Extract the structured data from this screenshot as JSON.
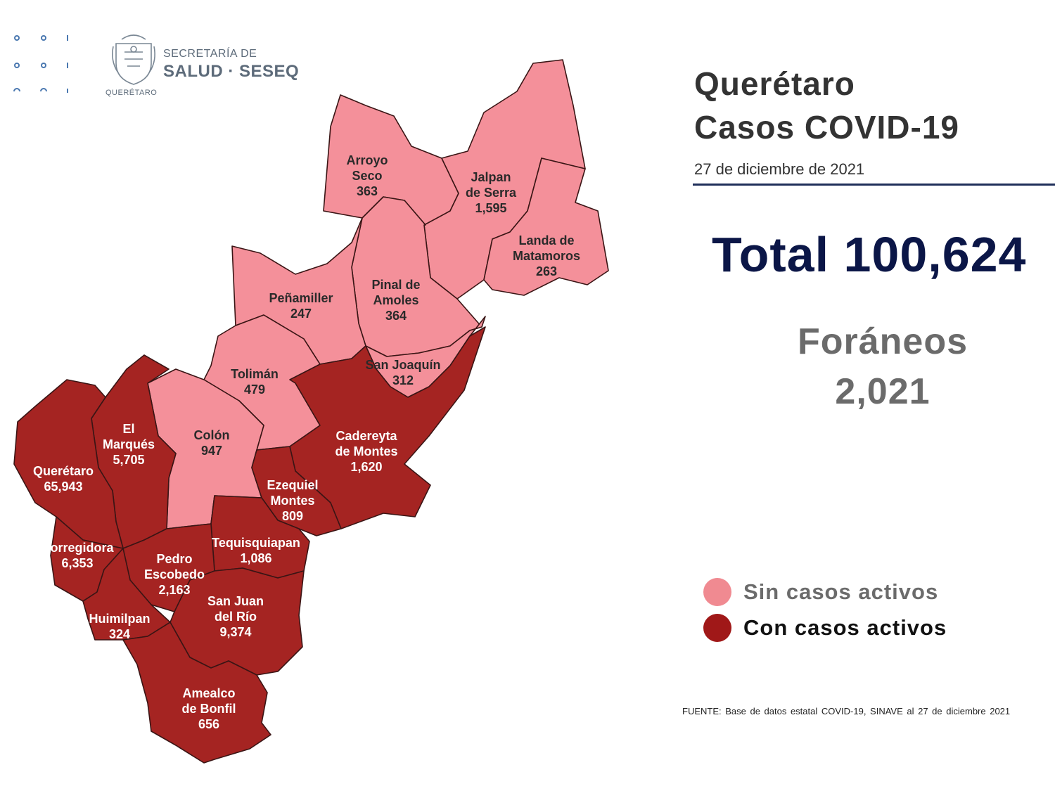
{
  "logo": {
    "line1": "SECRETARÍA DE",
    "line2": "SALUD · SESEQ",
    "caption": "QUERÉTARO"
  },
  "title": {
    "line1": "Querétaro",
    "line2": "Casos COVID-19"
  },
  "date": "27 de diciembre de 2021",
  "total": "Total 100,624",
  "foraneos": {
    "label": "Foráneos",
    "value": "2,021"
  },
  "legend": [
    {
      "label": "Sin casos activos",
      "color": "#f08a91",
      "text_color": "#6b6b6b"
    },
    {
      "label": "Con casos activos",
      "color": "#a01818",
      "text_color": "#111111"
    }
  ],
  "colors": {
    "sin_casos": "#f4909a",
    "con_casos": "#a52422",
    "border": "#222222",
    "title_navy": "#0b1647"
  },
  "source": "FUENTE: Base de datos estatal COVID-19, SINAVE al 27 de diciembre 2021",
  "municipalities": [
    {
      "id": "arroyo-seco",
      "lines": [
        "Arroyo",
        "Seco",
        "363"
      ],
      "status": "sin"
    },
    {
      "id": "jalpan-de-serra",
      "lines": [
        "Jalpan",
        "de Serra",
        "1,595"
      ],
      "status": "sin"
    },
    {
      "id": "landa-de-matamoros",
      "lines": [
        "Landa de",
        "Matamoros",
        "263"
      ],
      "status": "sin"
    },
    {
      "id": "pinal-de-amoles",
      "lines": [
        "Pinal de",
        "Amoles",
        "364"
      ],
      "status": "sin"
    },
    {
      "id": "penamiller",
      "lines": [
        "Peñamiller",
        "247"
      ],
      "status": "sin"
    },
    {
      "id": "san-joaquin",
      "lines": [
        "San Joaquín",
        "312"
      ],
      "status": "sin"
    },
    {
      "id": "toliman",
      "lines": [
        "Tolimán",
        "479"
      ],
      "status": "sin"
    },
    {
      "id": "colon",
      "lines": [
        "Colón",
        "947"
      ],
      "status": "sin"
    },
    {
      "id": "cadereyta-de-montes",
      "lines": [
        "Cadereyta",
        "de Montes",
        "1,620"
      ],
      "status": "con"
    },
    {
      "id": "el-marques",
      "lines": [
        "El",
        "Marqués",
        "5,705"
      ],
      "status": "con"
    },
    {
      "id": "queretaro",
      "lines": [
        "Querétaro",
        "65,943"
      ],
      "status": "con"
    },
    {
      "id": "ezequiel-montes",
      "lines": [
        "Ezequiel",
        "Montes",
        "809"
      ],
      "status": "con"
    },
    {
      "id": "corregidora",
      "lines": [
        "Corregidora",
        "6,353"
      ],
      "status": "con"
    },
    {
      "id": "tequisquiapan",
      "lines": [
        "Tequisquiapan",
        "1,086"
      ],
      "status": "con"
    },
    {
      "id": "pedro-escobedo",
      "lines": [
        "Pedro",
        "Escobedo",
        "2,163"
      ],
      "status": "con"
    },
    {
      "id": "huimilpan",
      "lines": [
        "Huimilpan",
        "324"
      ],
      "status": "con"
    },
    {
      "id": "san-juan-del-rio",
      "lines": [
        "San Juan",
        "del Río",
        "9,374"
      ],
      "status": "con"
    },
    {
      "id": "amealco-de-bonfil",
      "lines": [
        "Amealco",
        "de Bonfil",
        "656"
      ],
      "status": "con"
    }
  ]
}
